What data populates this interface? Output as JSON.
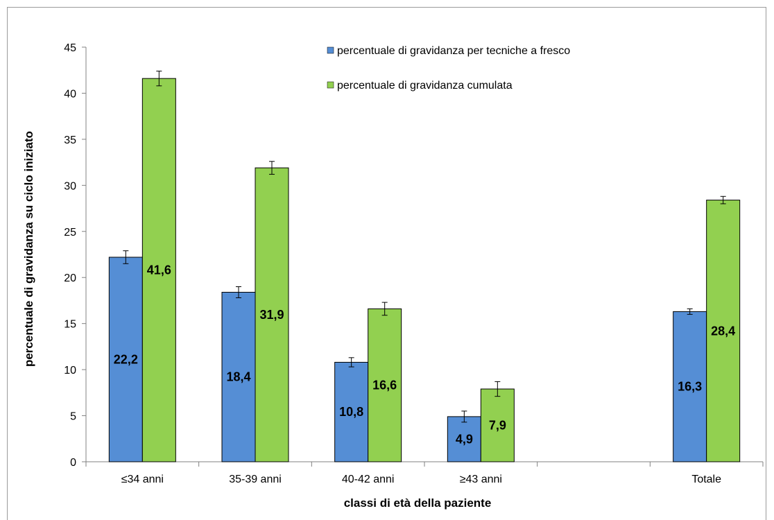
{
  "chart_data": {
    "type": "bar",
    "categories": [
      "≤34 anni",
      "35-39 anni",
      "40-42 anni",
      "≥43 anni",
      "",
      "Totale"
    ],
    "series": [
      {
        "name": "percentuale di gravidanza per tecniche a fresco",
        "color": "#558ed5",
        "values": [
          22.2,
          18.4,
          10.8,
          4.9,
          null,
          16.3
        ],
        "labels": [
          "22,2",
          "18,4",
          "10,8",
          "4,9",
          "",
          "16,3"
        ],
        "error": [
          0.7,
          0.6,
          0.5,
          0.6,
          null,
          0.3
        ]
      },
      {
        "name": "percentuale di gravidanza cumulata",
        "color": "#92d050",
        "values": [
          41.6,
          31.9,
          16.6,
          7.9,
          null,
          28.4
        ],
        "labels": [
          "41,6",
          "31,9",
          "16,6",
          "7,9",
          "",
          "28,4"
        ],
        "error": [
          0.8,
          0.7,
          0.7,
          0.8,
          null,
          0.4
        ]
      }
    ],
    "xlabel": "classi di età della paziente",
    "ylabel": "percentuale di gravidanza su ciclo iniziato",
    "ylim": [
      0,
      45
    ],
    "yticks": [
      0,
      5,
      10,
      15,
      20,
      25,
      30,
      35,
      40,
      45
    ],
    "grid": false,
    "legend_position": "top-right"
  }
}
